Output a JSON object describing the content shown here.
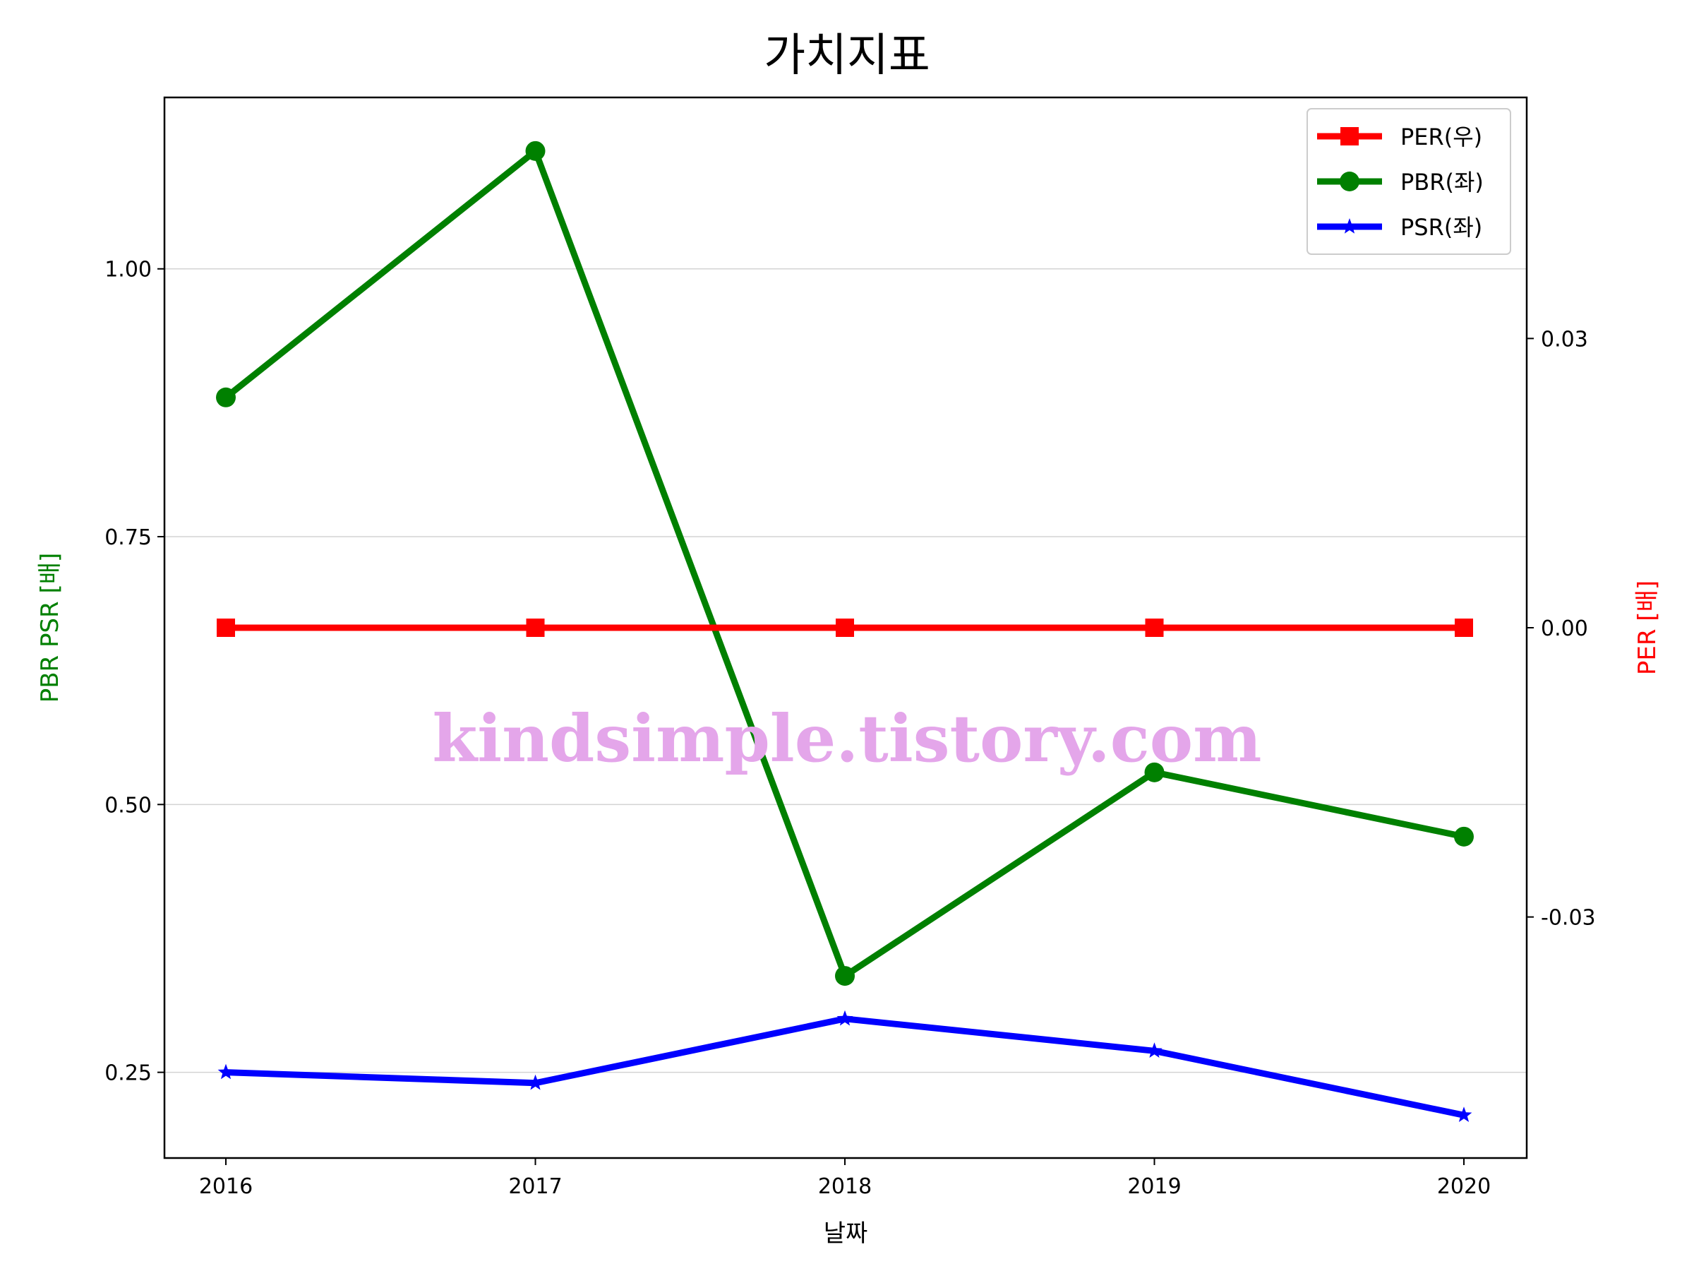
{
  "chart_data": {
    "type": "line",
    "title": "가치지표",
    "xlabel": "날짜",
    "ylabel_left": "PBR PSR [배]",
    "ylabel_right": "PER [배]",
    "categories": [
      "2016",
      "2017",
      "2018",
      "2019",
      "2020"
    ],
    "left_ylim": [
      0.17,
      1.16
    ],
    "left_yticks": [
      "0.25",
      "0.50",
      "0.75",
      "1.00"
    ],
    "right_ylim": [
      -0.055,
      0.055
    ],
    "right_yticks": [
      "-0.03",
      "0.00",
      "0.03"
    ],
    "grid": "horizontal (left axis)",
    "legend_position": "top-right",
    "series": [
      {
        "name": "PER(우)",
        "axis": "right",
        "marker": "square",
        "color": "#ff0000",
        "values": [
          0,
          0,
          0,
          0,
          0
        ]
      },
      {
        "name": "PBR(좌)",
        "axis": "left",
        "marker": "circle",
        "color": "#008000",
        "values": [
          0.88,
          1.11,
          0.34,
          0.53,
          0.47
        ]
      },
      {
        "name": "PSR(좌)",
        "axis": "left",
        "marker": "star",
        "color": "#0000ff",
        "values": [
          0.25,
          0.24,
          0.3,
          0.27,
          0.21
        ]
      }
    ],
    "watermark": "kindsimple.tistory.com"
  }
}
